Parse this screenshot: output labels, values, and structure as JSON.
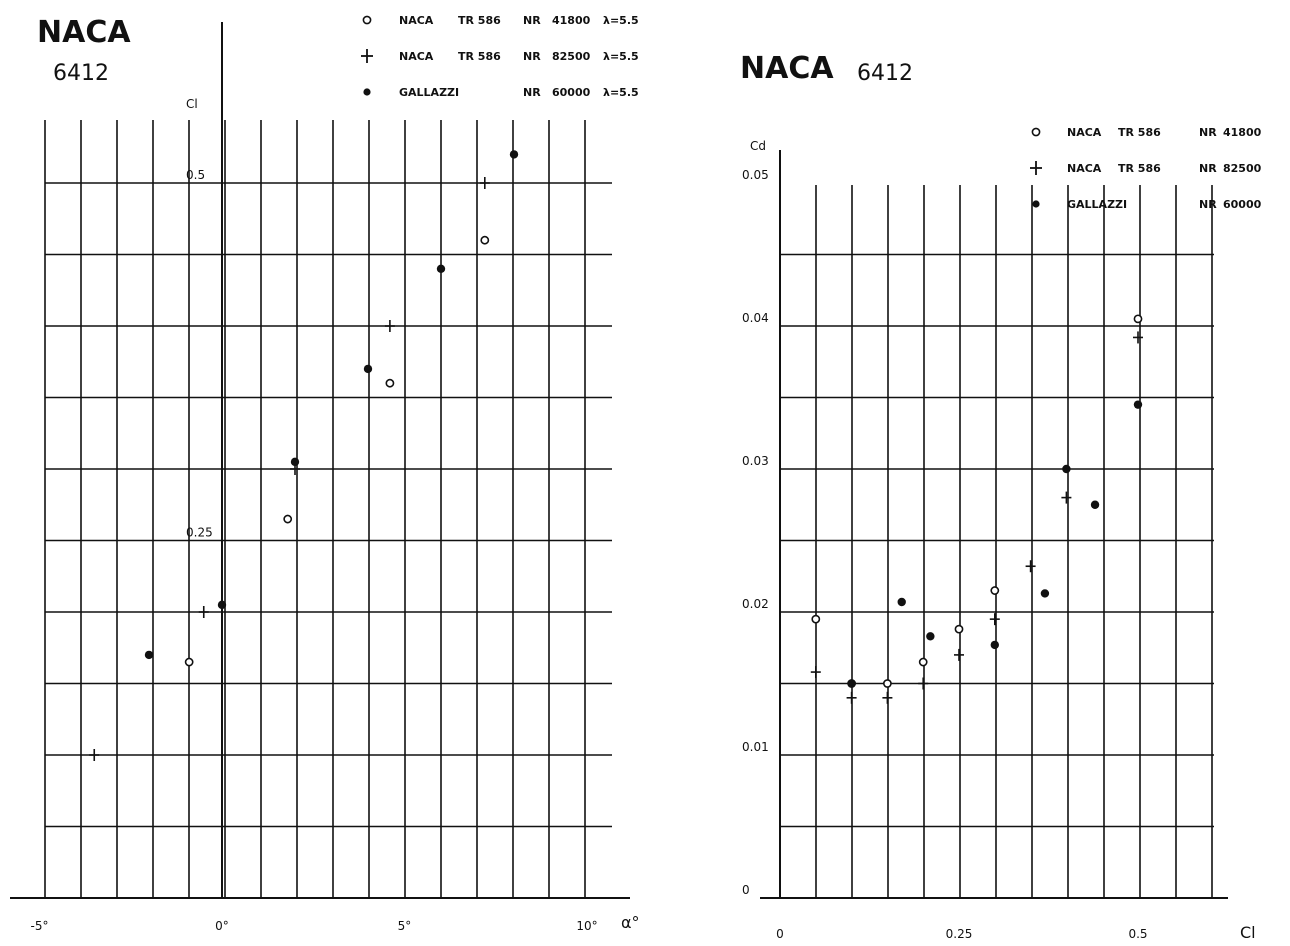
{
  "chart_data": [
    {
      "type": "scatter",
      "title": "NACA",
      "subtitle": "6412",
      "xlabel": "α°",
      "ylabel": "Cl",
      "xlim": [
        -6,
        12
      ],
      "ylim": [
        0,
        0.6
      ],
      "grid": true,
      "legend_position": "top-right",
      "x_ticks": [
        {
          "value": -5,
          "label": "-5°"
        },
        {
          "value": 0,
          "label": "0°"
        },
        {
          "value": 5,
          "label": "5°"
        },
        {
          "value": 10,
          "label": "10°"
        }
      ],
      "y_ticks": [
        {
          "value": 0.25,
          "label": "0.25"
        },
        {
          "value": 0.5,
          "label": "0.5"
        }
      ],
      "series": [
        {
          "name": "NACA TR 586 NR 41800 λ=5.5",
          "marker": "open-circle",
          "legend": [
            "NACA",
            "TR 586",
            "NR",
            "41800",
            "λ=5.5"
          ],
          "points": [
            [
              -0.9,
              0.165
            ],
            [
              1.8,
              0.265
            ],
            [
              4.6,
              0.36
            ],
            [
              7.2,
              0.46
            ]
          ]
        },
        {
          "name": "NACA TR 586 NR 82500 λ=5.5",
          "marker": "plus",
          "legend": [
            "NACA",
            "TR 586",
            "NR",
            "82500",
            "λ=5.5"
          ],
          "points": [
            [
              -3.5,
              0.1
            ],
            [
              -0.5,
              0.2
            ],
            [
              2.0,
              0.3
            ],
            [
              4.6,
              0.4
            ],
            [
              7.2,
              0.5
            ]
          ]
        },
        {
          "name": "GALLAZZI NR 60000 λ=5.5",
          "marker": "dot",
          "legend": [
            "GALLAZZI",
            "",
            "NR",
            "60000",
            "λ=5.5"
          ],
          "points": [
            [
              -2.0,
              0.17
            ],
            [
              0.0,
              0.205
            ],
            [
              2.0,
              0.305
            ],
            [
              4.0,
              0.37
            ],
            [
              6.0,
              0.44
            ],
            [
              8.0,
              0.52
            ]
          ]
        }
      ]
    },
    {
      "type": "scatter",
      "title": "NACA",
      "subtitle": "6412",
      "xlabel": "Cl",
      "ylabel": "Cd",
      "xlim": [
        0,
        0.6
      ],
      "ylim": [
        0,
        0.06
      ],
      "grid": true,
      "legend_position": "top-right",
      "x_ticks": [
        {
          "value": 0,
          "label": "0"
        },
        {
          "value": 0.25,
          "label": "0.25"
        },
        {
          "value": 0.5,
          "label": "0.5"
        }
      ],
      "y_ticks": [
        {
          "value": 0,
          "label": "0"
        },
        {
          "value": 0.01,
          "label": "0.01"
        },
        {
          "value": 0.02,
          "label": "0.02"
        },
        {
          "value": 0.03,
          "label": "0.03"
        },
        {
          "value": 0.04,
          "label": "0.04"
        },
        {
          "value": 0.05,
          "label": "0.05"
        }
      ],
      "series": [
        {
          "name": "NACA TR 586 NR 41800",
          "marker": "open-circle",
          "legend": [
            "NACA",
            "TR 586",
            "NR",
            "41800"
          ],
          "points": [
            [
              0.05,
              0.0195
            ],
            [
              0.1,
              0.015
            ],
            [
              0.15,
              0.015
            ],
            [
              0.2,
              0.0165
            ],
            [
              0.25,
              0.0188
            ],
            [
              0.3,
              0.0215
            ],
            [
              0.5,
              0.0405
            ]
          ]
        },
        {
          "name": "NACA TR 586 NR 82500",
          "marker": "plus",
          "legend": [
            "NACA",
            "TR 586",
            "NR",
            "82500"
          ],
          "points": [
            [
              0.05,
              0.0158
            ],
            [
              0.1,
              0.014
            ],
            [
              0.15,
              0.014
            ],
            [
              0.2,
              0.015
            ],
            [
              0.25,
              0.017
            ],
            [
              0.3,
              0.0195
            ],
            [
              0.35,
              0.0232
            ],
            [
              0.4,
              0.028
            ],
            [
              0.5,
              0.0392
            ]
          ]
        },
        {
          "name": "GALLAZZI NR 60000",
          "marker": "dot",
          "legend": [
            "GALLAZZI",
            "",
            "NR",
            "60000"
          ],
          "points": [
            [
              0.1,
              0.015
            ],
            [
              0.17,
              0.0207
            ],
            [
              0.21,
              0.0183
            ],
            [
              0.3,
              0.0177
            ],
            [
              0.37,
              0.0213
            ],
            [
              0.4,
              0.03
            ],
            [
              0.44,
              0.0275
            ],
            [
              0.5,
              0.0345
            ]
          ]
        }
      ]
    }
  ]
}
